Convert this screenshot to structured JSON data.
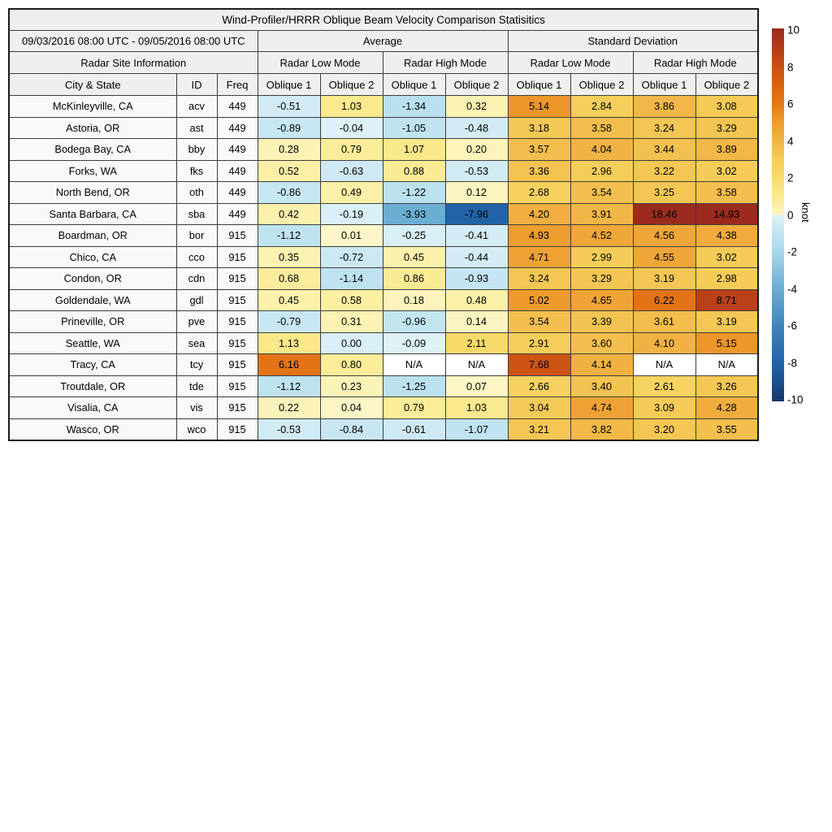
{
  "title": "Wind-Profiler/HRRR Oblique Beam Velocity Comparison Statisitics",
  "header": {
    "date_range": "09/03/2016 08:00 UTC - 09/05/2016 08:00 UTC",
    "average": "Average",
    "std_dev": "Standard Deviation",
    "site_info": "Radar Site Information",
    "low_mode": "Radar Low Mode",
    "high_mode": "Radar High Mode",
    "col_city": "City & State",
    "col_id": "ID",
    "col_freq": "Freq",
    "col_oblique1": "Oblique 1",
    "col_oblique2": "Oblique 2"
  },
  "colorbar": {
    "unit": "knot",
    "ticks": [
      "10",
      "8",
      "6",
      "4",
      "2",
      "0",
      "-2",
      "-4",
      "-6",
      "-8",
      "-10"
    ],
    "range": [
      -10,
      10
    ]
  },
  "chart_data": {
    "type": "heatmap",
    "title": "Wind-Profiler/HRRR Oblique Beam Velocity Comparison Statisitics",
    "period": "09/03/2016 08:00 UTC - 09/05/2016 08:00 UTC",
    "unit": "knot",
    "colorbar_range": [
      -10,
      10
    ],
    "legend_position": "right",
    "value_columns": [
      "Average Radar Low Mode Oblique 1",
      "Average Radar Low Mode Oblique 2",
      "Average Radar High Mode Oblique 1",
      "Average Radar High Mode Oblique 2",
      "Standard Deviation Radar Low Mode Oblique 1",
      "Standard Deviation Radar Low Mode Oblique 2",
      "Standard Deviation Radar High Mode Oblique 1",
      "Standard Deviation Radar High Mode Oblique 2"
    ],
    "rows": [
      {
        "city": "McKinleyville, CA",
        "id": "acv",
        "freq": "449",
        "values": [
          "-0.51",
          "1.03",
          "-1.34",
          "0.32",
          "5.14",
          "2.84",
          "3.86",
          "3.08"
        ]
      },
      {
        "city": "Astoria, OR",
        "id": "ast",
        "freq": "449",
        "values": [
          "-0.89",
          "-0.04",
          "-1.05",
          "-0.48",
          "3.18",
          "3.58",
          "3.24",
          "3.29"
        ]
      },
      {
        "city": "Bodega Bay, CA",
        "id": "bby",
        "freq": "449",
        "values": [
          "0.28",
          "0.79",
          "1.07",
          "0.20",
          "3.57",
          "4.04",
          "3.44",
          "3.89"
        ]
      },
      {
        "city": "Forks, WA",
        "id": "fks",
        "freq": "449",
        "values": [
          "0.52",
          "-0.63",
          "0.88",
          "-0.53",
          "3.36",
          "2.96",
          "3.22",
          "3.02"
        ]
      },
      {
        "city": "North Bend, OR",
        "id": "oth",
        "freq": "449",
        "values": [
          "-0.86",
          "0.49",
          "-1.22",
          "0.12",
          "2.68",
          "3.54",
          "3.25",
          "3.58"
        ]
      },
      {
        "city": "Santa Barbara, CA",
        "id": "sba",
        "freq": "449",
        "values": [
          "0.42",
          "-0.19",
          "-3.93",
          "-7.96",
          "4.20",
          "3.91",
          "18.46",
          "14.93"
        ]
      },
      {
        "city": "Boardman, OR",
        "id": "bor",
        "freq": "915",
        "values": [
          "-1.12",
          "0.01",
          "-0.25",
          "-0.41",
          "4.93",
          "4.52",
          "4.56",
          "4.38"
        ]
      },
      {
        "city": "Chico, CA",
        "id": "cco",
        "freq": "915",
        "values": [
          "0.35",
          "-0.72",
          "0.45",
          "-0.44",
          "4.71",
          "2.99",
          "4.55",
          "3.02"
        ]
      },
      {
        "city": "Condon, OR",
        "id": "cdn",
        "freq": "915",
        "values": [
          "0.68",
          "-1.14",
          "0.86",
          "-0.93",
          "3.24",
          "3.29",
          "3.19",
          "2.98"
        ]
      },
      {
        "city": "Goldendale, WA",
        "id": "gdl",
        "freq": "915",
        "values": [
          "0.45",
          "0.58",
          "0.18",
          "0.48",
          "5.02",
          "4.65",
          "6.22",
          "8.71"
        ]
      },
      {
        "city": "Prineville, OR",
        "id": "pve",
        "freq": "915",
        "values": [
          "-0.79",
          "0.31",
          "-0.96",
          "0.14",
          "3.54",
          "3.39",
          "3.61",
          "3.19"
        ]
      },
      {
        "city": "Seattle, WA",
        "id": "sea",
        "freq": "915",
        "values": [
          "1.13",
          "0.00",
          "-0.09",
          "2.11",
          "2.91",
          "3.60",
          "4.10",
          "5.15"
        ]
      },
      {
        "city": "Tracy, CA",
        "id": "tcy",
        "freq": "915",
        "values": [
          "6.16",
          "0.80",
          "N/A",
          "N/A",
          "7.68",
          "4.14",
          "N/A",
          "N/A"
        ]
      },
      {
        "city": "Troutdale, OR",
        "id": "tde",
        "freq": "915",
        "values": [
          "-1.12",
          "0.23",
          "-1.25",
          "0.07",
          "2.66",
          "3.40",
          "2.61",
          "3.26"
        ]
      },
      {
        "city": "Visalia, CA",
        "id": "vis",
        "freq": "915",
        "values": [
          "0.22",
          "0.04",
          "0.79",
          "1.03",
          "3.04",
          "4.74",
          "3.09",
          "4.28"
        ]
      },
      {
        "city": "Wasco, OR",
        "id": "wco",
        "freq": "915",
        "values": [
          "-0.53",
          "-0.84",
          "-0.61",
          "-1.07",
          "3.21",
          "3.82",
          "3.20",
          "3.55"
        ]
      }
    ]
  }
}
